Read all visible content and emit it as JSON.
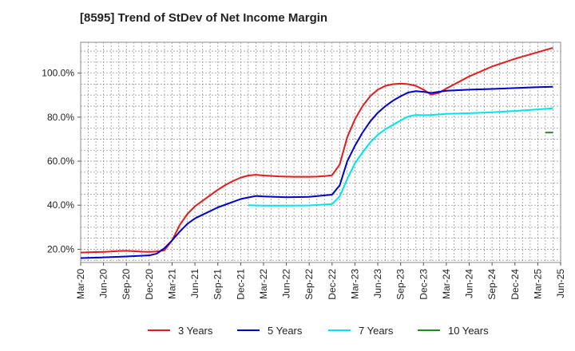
{
  "chart_data": {
    "type": "line",
    "title": "[8595]  Trend of StDev of Net Income Margin",
    "xlabel": "",
    "ylabel": "",
    "x_ticks": [
      "Mar-20",
      "Jun-20",
      "Sep-20",
      "Dec-20",
      "Mar-21",
      "Jun-21",
      "Sep-21",
      "Dec-21",
      "Mar-22",
      "Jun-22",
      "Sep-22",
      "Dec-22",
      "Mar-23",
      "Jun-23",
      "Sep-23",
      "Dec-23",
      "Mar-24",
      "Jun-24",
      "Sep-24",
      "Dec-24",
      "Mar-25",
      "Jun-25"
    ],
    "y_ticks": [
      {
        "value": 20,
        "label": "20.0%"
      },
      {
        "value": 40,
        "label": "40.0%"
      },
      {
        "value": 60,
        "label": "60.0%"
      },
      {
        "value": 80,
        "label": "80.0%"
      },
      {
        "value": 100,
        "label": "100.0%"
      }
    ],
    "ylim": [
      14,
      114
    ],
    "grid": true,
    "legend_position": "bottom",
    "series": [
      {
        "name": "3 Years",
        "color": "#e41a1c",
        "points": [
          [
            "Mar-20",
            18.5
          ],
          [
            "Apr-20",
            18.6
          ],
          [
            "May-20",
            18.7
          ],
          [
            "Jun-20",
            18.8
          ],
          [
            "Jul-20",
            19.0
          ],
          [
            "Aug-20",
            19.2
          ],
          [
            "Sep-20",
            19.3
          ],
          [
            "Oct-20",
            19.1
          ],
          [
            "Nov-20",
            18.9
          ],
          [
            "Dec-20",
            18.8
          ],
          [
            "Jan-21",
            19.0
          ],
          [
            "Feb-21",
            19.5
          ],
          [
            "Mar-21",
            24.0
          ],
          [
            "Apr-21",
            31.0
          ],
          [
            "May-21",
            36.0
          ],
          [
            "Jun-21",
            39.5
          ],
          [
            "Jul-21",
            42.0
          ],
          [
            "Aug-21",
            44.5
          ],
          [
            "Sep-21",
            47.0
          ],
          [
            "Oct-21",
            49.2
          ],
          [
            "Nov-21",
            51.0
          ],
          [
            "Dec-21",
            52.5
          ],
          [
            "Jan-22",
            53.5
          ],
          [
            "Feb-22",
            53.8
          ],
          [
            "Mar-22",
            53.5
          ],
          [
            "Apr-22",
            53.3
          ],
          [
            "May-22",
            53.1
          ],
          [
            "Jun-22",
            53.0
          ],
          [
            "Jul-22",
            52.9
          ],
          [
            "Aug-22",
            52.9
          ],
          [
            "Sep-22",
            52.9
          ],
          [
            "Oct-22",
            53.0
          ],
          [
            "Nov-22",
            53.2
          ],
          [
            "Dec-22",
            53.6
          ],
          [
            "Jan-23",
            58.5
          ],
          [
            "Feb-23",
            71.0
          ],
          [
            "Mar-23",
            79.0
          ],
          [
            "Apr-23",
            85.0
          ],
          [
            "May-23",
            89.5
          ],
          [
            "Jun-23",
            92.5
          ],
          [
            "Jul-23",
            94.2
          ],
          [
            "Aug-23",
            95.0
          ],
          [
            "Sep-23",
            95.2
          ],
          [
            "Oct-23",
            95.0
          ],
          [
            "Nov-23",
            94.2
          ],
          [
            "Dec-23",
            92.5
          ],
          [
            "Jan-24",
            90.2
          ],
          [
            "Feb-24",
            91.0
          ],
          [
            "Mar-24",
            93.0
          ],
          [
            "Jun-24",
            98.5
          ],
          [
            "Sep-24",
            103.0
          ],
          [
            "Dec-24",
            106.5
          ],
          [
            "Mar-25",
            109.5
          ],
          [
            "May-25",
            111.5
          ]
        ]
      },
      {
        "name": "5 Years",
        "color": "#0000cc",
        "points": [
          [
            "Mar-20",
            16.0
          ],
          [
            "Jun-20",
            16.3
          ],
          [
            "Sep-20",
            16.7
          ],
          [
            "Dec-20",
            17.2
          ],
          [
            "Jan-21",
            18.0
          ],
          [
            "Feb-21",
            20.5
          ],
          [
            "Mar-21",
            24.0
          ],
          [
            "Apr-21",
            28.0
          ],
          [
            "May-21",
            31.5
          ],
          [
            "Jun-21",
            34.0
          ],
          [
            "Sep-21",
            39.0
          ],
          [
            "Dec-21",
            42.8
          ],
          [
            "Feb-22",
            44.2
          ],
          [
            "Mar-22",
            44.0
          ],
          [
            "Jun-22",
            43.6
          ],
          [
            "Sep-22",
            43.8
          ],
          [
            "Dec-22",
            44.8
          ],
          [
            "Jan-23",
            49.0
          ],
          [
            "Feb-23",
            60.0
          ],
          [
            "Mar-23",
            67.0
          ],
          [
            "Apr-23",
            73.0
          ],
          [
            "May-23",
            78.0
          ],
          [
            "Jun-23",
            82.0
          ],
          [
            "Jul-23",
            85.0
          ],
          [
            "Aug-23",
            87.5
          ],
          [
            "Sep-23",
            89.5
          ],
          [
            "Oct-23",
            91.2
          ],
          [
            "Nov-23",
            91.8
          ],
          [
            "Dec-23",
            91.5
          ],
          [
            "Jan-24",
            91.0
          ],
          [
            "Feb-24",
            91.5
          ],
          [
            "Mar-24",
            92.0
          ],
          [
            "Jun-24",
            92.5
          ],
          [
            "Sep-24",
            92.8
          ],
          [
            "Dec-24",
            93.2
          ],
          [
            "Mar-25",
            93.6
          ],
          [
            "May-25",
            93.8
          ]
        ]
      },
      {
        "name": "7 Years",
        "color": "#00e5ee",
        "points": [
          [
            "Jan-22",
            40.0
          ],
          [
            "Mar-22",
            39.8
          ],
          [
            "Jun-22",
            39.8
          ],
          [
            "Sep-22",
            39.9
          ],
          [
            "Dec-22",
            40.5
          ],
          [
            "Jan-23",
            44.0
          ],
          [
            "Feb-23",
            52.0
          ],
          [
            "Mar-23",
            59.0
          ],
          [
            "Apr-23",
            64.0
          ],
          [
            "May-23",
            68.5
          ],
          [
            "Jun-23",
            72.0
          ],
          [
            "Jul-23",
            74.5
          ],
          [
            "Aug-23",
            76.5
          ],
          [
            "Sep-23",
            78.5
          ],
          [
            "Oct-23",
            80.3
          ],
          [
            "Nov-23",
            81.0
          ],
          [
            "Dec-23",
            80.9
          ],
          [
            "Jan-24",
            81.0
          ],
          [
            "Mar-24",
            81.5
          ],
          [
            "Jun-24",
            81.8
          ],
          [
            "Sep-24",
            82.2
          ],
          [
            "Dec-24",
            82.8
          ],
          [
            "Mar-25",
            83.5
          ],
          [
            "May-25",
            84.0
          ]
        ]
      },
      {
        "name": "10 Years",
        "color": "#228b22",
        "points": [
          [
            "Apr-25",
            73.0
          ],
          [
            "May-25",
            73.0
          ]
        ]
      }
    ]
  }
}
